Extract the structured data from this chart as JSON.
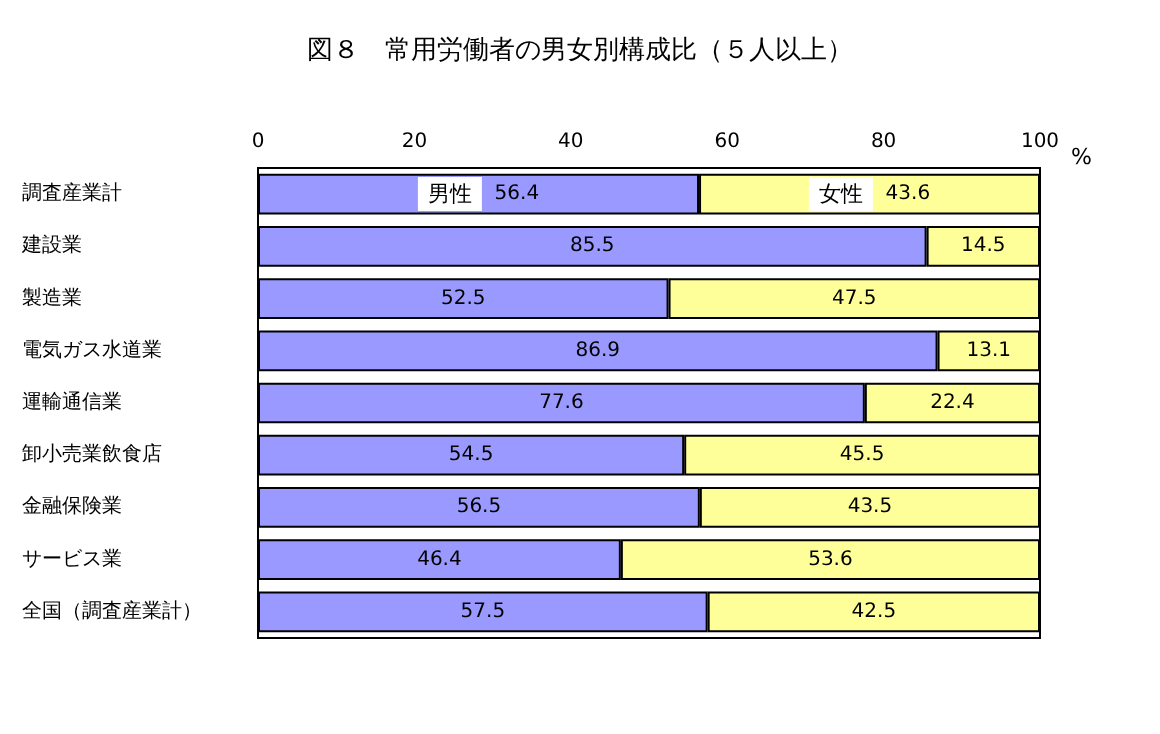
{
  "chart_data": {
    "type": "bar",
    "orientation": "horizontal",
    "stacked": true,
    "title": "図８　常用労働者の男女別構成比（５人以上）",
    "xlabel": "%",
    "categories": [
      "調査産業計",
      "建設業",
      "製造業",
      "電気ガス水道業",
      "運輸通信業",
      "卸小売業飲食店",
      "金融保険業",
      "サービス業",
      "全国（調査産業計）"
    ],
    "series": [
      {
        "name": "男性",
        "color": "#9999ff",
        "values": [
          56.4,
          85.5,
          52.5,
          86.9,
          77.6,
          54.5,
          56.5,
          46.4,
          57.5
        ]
      },
      {
        "name": "女性",
        "color": "#ffff99",
        "values": [
          43.6,
          14.5,
          47.5,
          13.1,
          22.4,
          45.5,
          43.5,
          53.6,
          42.5
        ]
      }
    ],
    "xlim": [
      0,
      100
    ],
    "xticks": [
      0,
      20,
      40,
      60,
      80,
      100
    ],
    "data_labels": true,
    "legend": false,
    "grid": false
  }
}
